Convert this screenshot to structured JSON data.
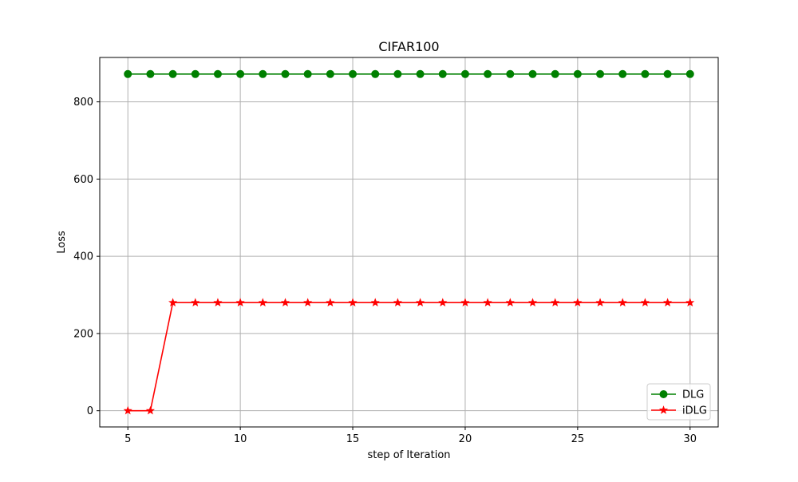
{
  "chart_data": {
    "type": "line",
    "title": "CIFAR100",
    "xlabel": "step of Iteration",
    "ylabel": "Loss",
    "xlim": [
      3.75,
      31.25
    ],
    "ylim": [
      -42,
      915
    ],
    "xticks": [
      5,
      10,
      15,
      20,
      25,
      30
    ],
    "yticks": [
      0,
      200,
      400,
      600,
      800
    ],
    "grid": true,
    "legend_position": "lower right",
    "x": [
      5,
      6,
      7,
      8,
      9,
      10,
      11,
      12,
      13,
      14,
      15,
      16,
      17,
      18,
      19,
      20,
      21,
      22,
      23,
      24,
      25,
      26,
      27,
      28,
      29,
      30
    ],
    "series": [
      {
        "name": "DLG",
        "color": "#008000",
        "marker": "circle",
        "values": [
          872,
          872,
          872,
          872,
          872,
          872,
          872,
          872,
          872,
          872,
          872,
          872,
          872,
          872,
          872,
          872,
          872,
          872,
          872,
          872,
          872,
          872,
          872,
          872,
          872,
          872
        ]
      },
      {
        "name": "iDLG",
        "color": "#ff0000",
        "marker": "star",
        "values": [
          0,
          0,
          280,
          280,
          280,
          280,
          280,
          280,
          280,
          280,
          280,
          280,
          280,
          280,
          280,
          280,
          280,
          280,
          280,
          280,
          280,
          280,
          280,
          280,
          280,
          280
        ]
      }
    ]
  }
}
